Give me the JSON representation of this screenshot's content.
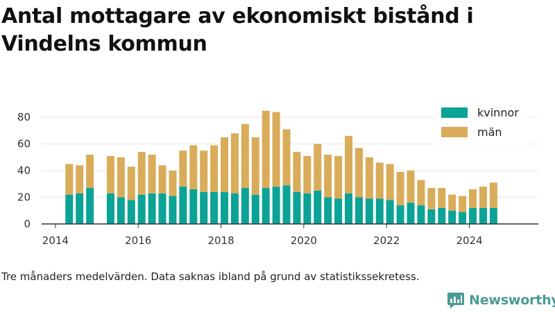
{
  "title": "Antal mottagare av ekonomiskt bistånd i Vindelns kommun",
  "note": "Tre månaders medelvärden. Data saknas ibland på grund av statistikssekretess.",
  "brand": {
    "name": "Newsworthy",
    "logo_icon": "newsworthy-logo-icon"
  },
  "colors": {
    "kvinnor": "#0aa396",
    "man": "#d9ac5a",
    "axis": "#333333",
    "grid": "#e6e6e6"
  },
  "legend": {
    "kvinnor": "kvinnor",
    "man": "män",
    "placement": "top-right"
  },
  "chart_data": {
    "type": "bar",
    "stacked": true,
    "title": "Antal mottagare av ekonomiskt bistånd i Vindelns kommun",
    "xlabel": "",
    "ylabel": "",
    "ylim": [
      0,
      90
    ],
    "xlim": [
      "2013-09",
      "2025-09"
    ],
    "yticks": [
      0,
      20,
      40,
      60,
      80
    ],
    "xticks": [
      "2014",
      "2016",
      "2018",
      "2020",
      "2022",
      "2024"
    ],
    "grid": {
      "y": true,
      "x": false
    },
    "x": [
      "2014-05",
      "2014-08",
      "2014-11",
      "2015-05",
      "2015-08",
      "2015-11",
      "2016-02",
      "2016-05",
      "2016-08",
      "2016-11",
      "2017-02",
      "2017-05",
      "2017-08",
      "2017-11",
      "2018-02",
      "2018-05",
      "2018-08",
      "2018-11",
      "2019-02",
      "2019-05",
      "2019-08",
      "2019-11",
      "2020-02",
      "2020-05",
      "2020-08",
      "2020-11",
      "2021-02",
      "2021-05",
      "2021-08",
      "2021-11",
      "2022-02",
      "2022-05",
      "2022-08",
      "2022-11",
      "2023-02",
      "2023-05",
      "2023-08",
      "2023-11",
      "2024-02",
      "2024-05",
      "2024-08"
    ],
    "series": [
      {
        "name": "kvinnor",
        "values": [
          22,
          23,
          27,
          23,
          20,
          18,
          22,
          23,
          23,
          21,
          28,
          26,
          24,
          24,
          24,
          23,
          27,
          22,
          27,
          28,
          29,
          24,
          23,
          25,
          20,
          19,
          23,
          20,
          19,
          19,
          18,
          14,
          16,
          14,
          11,
          12,
          10,
          9,
          12,
          12,
          12
        ]
      },
      {
        "name": "män",
        "values": [
          23,
          21,
          25,
          28,
          30,
          25,
          32,
          29,
          21,
          19,
          27,
          33,
          31,
          35,
          41,
          45,
          48,
          43,
          58,
          56,
          42,
          30,
          28,
          35,
          32,
          32,
          43,
          37,
          31,
          27,
          27,
          25,
          24,
          19,
          16,
          15,
          12,
          12,
          14,
          16,
          19
        ]
      }
    ]
  }
}
